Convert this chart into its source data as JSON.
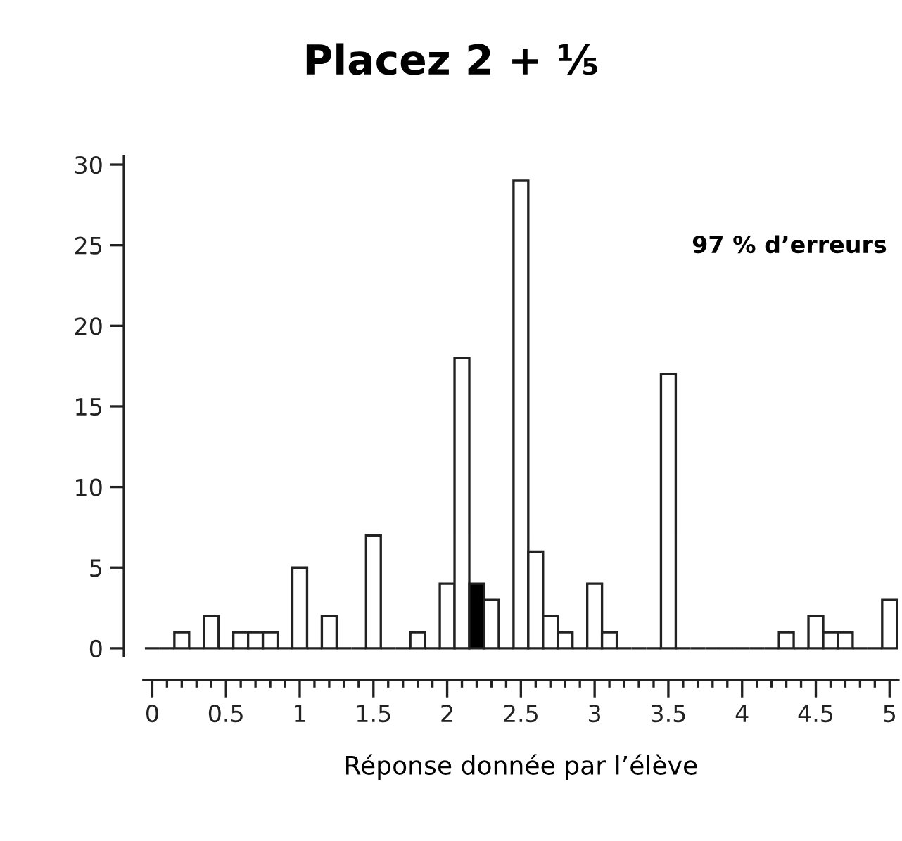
{
  "chart_data": {
    "type": "histogram",
    "title": "Placez 2 + ⅕",
    "xlabel": "Réponse donnée par l’élève",
    "annotations": [
      "97 % d’erreurs"
    ],
    "bins": [
      -0.05,
      0.05,
      0.15,
      0.25,
      0.35,
      0.45,
      0.55,
      0.65,
      0.75,
      0.85,
      0.95,
      1.05,
      1.15,
      1.25,
      1.35,
      1.45,
      1.55,
      1.65,
      1.75,
      1.85,
      1.95,
      2.05,
      2.15,
      2.25,
      2.35,
      2.45,
      2.55,
      2.65,
      2.75,
      2.85,
      2.95,
      3.05,
      3.15,
      3.25,
      3.35,
      3.45,
      3.55,
      3.65,
      3.75,
      3.85,
      3.95,
      4.05,
      4.15,
      4.25,
      4.35,
      4.45,
      4.55,
      4.65,
      4.75,
      4.85,
      4.95,
      5.05
    ],
    "values": [
      0,
      0,
      1,
      0,
      2,
      0,
      1,
      1,
      1,
      0,
      5,
      0,
      2,
      0,
      0,
      7,
      0,
      0,
      1,
      0,
      4,
      18,
      4,
      3,
      0,
      29,
      6,
      2,
      1,
      0,
      4,
      1,
      0,
      0,
      0,
      17,
      0,
      0,
      0,
      0,
      0,
      0,
      0,
      1,
      0,
      2,
      1,
      1,
      0,
      0,
      3
    ],
    "colors": [
      "#222222",
      "#222222",
      "#ffffff",
      "#222222",
      "#ffffff",
      "#222222",
      "#ffffff",
      "#ffffff",
      "#ffffff",
      "#222222",
      "#ffffff",
      "#222222",
      "#ffffff",
      "#222222",
      "#222222",
      "#ffffff",
      "#222222",
      "#222222",
      "#ffffff",
      "#222222",
      "#ffffff",
      "#ffffff",
      "#000000",
      "#ffffff",
      "#222222",
      "#ffffff",
      "#ffffff",
      "#ffffff",
      "#ffffff",
      "#222222",
      "#ffffff",
      "#ffffff",
      "#222222",
      "#222222",
      "#222222",
      "#ffffff",
      "#222222",
      "#222222",
      "#222222",
      "#222222",
      "#222222",
      "#222222",
      "#222222",
      "#ffffff",
      "#222222",
      "#ffffff",
      "#ffffff",
      "#ffffff",
      "#222222",
      "#222222",
      "#ffffff"
    ],
    "xlim": [
      -0.06,
      5.06
    ],
    "ylim": [
      -0.5,
      30.5
    ],
    "xticks": [
      0,
      0.5,
      1,
      1.5,
      2,
      2.5,
      3,
      3.5,
      4,
      4.5,
      5
    ],
    "yticks": [
      0,
      5,
      10,
      15,
      20,
      25,
      30
    ],
    "grid": false,
    "legend": false
  }
}
